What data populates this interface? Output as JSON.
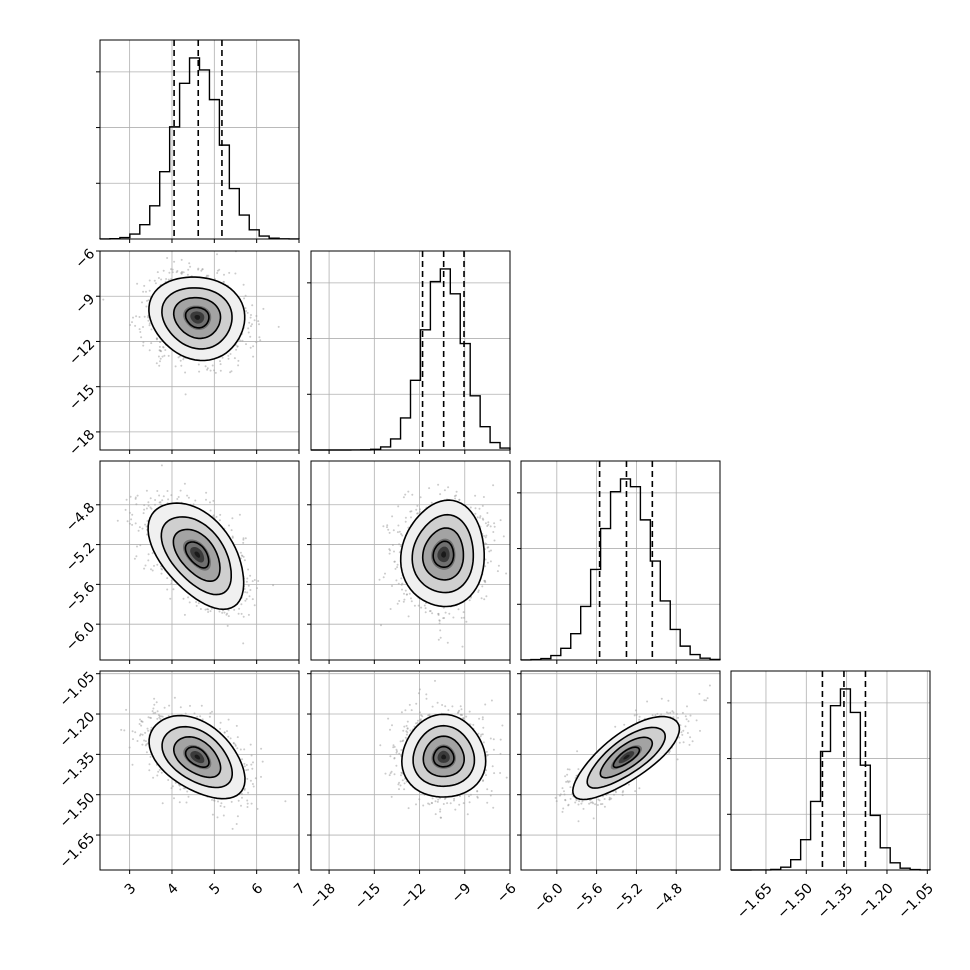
{
  "chart_data": {
    "type": "corner",
    "title": "",
    "parameters": [
      {
        "range": [
          2.3,
          7.0
        ],
        "ticks": [
          "3",
          "4",
          "5",
          "6",
          "7"
        ],
        "tick_values": [
          3,
          4,
          5,
          6,
          7
        ],
        "mean": 4.6,
        "sd": 0.55,
        "quantiles": [
          4.05,
          4.62,
          5.18
        ]
      },
      {
        "range": [
          -19.2,
          -6.0
        ],
        "ticks": [
          "−18",
          "−15",
          "−12",
          "−9",
          "−6"
        ],
        "tick_values": [
          -18,
          -15,
          -12,
          -9,
          -6
        ],
        "mean": -10.4,
        "sd": 1.35,
        "quantiles": [
          -11.8,
          -10.4,
          -9.05
        ]
      },
      {
        "range": [
          -6.36,
          -4.36
        ],
        "ticks": [
          "−6.0",
          "−5.6",
          "−5.2",
          "−4.8"
        ],
        "tick_values": [
          -6.0,
          -5.6,
          -5.2,
          -4.8
        ],
        "mean": -5.3,
        "sd": 0.26,
        "quantiles": [
          -5.57,
          -5.3,
          -5.04
        ]
      },
      {
        "range": [
          -1.78,
          -1.04
        ],
        "ticks": [
          "−1.65",
          "−1.50",
          "−1.35",
          "−1.20",
          "−1.05"
        ],
        "tick_values": [
          -1.65,
          -1.5,
          -1.35,
          -1.2,
          -1.05
        ],
        "mean": -1.36,
        "sd": 0.075,
        "quantiles": [
          -1.44,
          -1.36,
          -1.28
        ]
      }
    ],
    "y_axis_ticks": [
      null,
      {
        "ticks": [
          "−6",
          "−9",
          "−12",
          "−15",
          "−18"
        ],
        "tick_values": [
          -6,
          -9,
          -12,
          -15,
          -18
        ]
      },
      {
        "ticks": [
          "−4.8",
          "−5.2",
          "−5.6",
          "−6.0"
        ],
        "tick_values": [
          -4.8,
          -5.2,
          -5.6,
          -6.0
        ]
      },
      {
        "ticks": [
          "−1.05",
          "−1.20",
          "−1.35",
          "−1.50",
          "−1.65"
        ],
        "tick_values": [
          -1.05,
          -1.2,
          -1.35,
          -1.5,
          -1.65
        ]
      }
    ],
    "correlations": [
      {
        "pair": [
          0,
          1
        ],
        "rho": -0.1
      },
      {
        "pair": [
          0,
          2
        ],
        "rho": -0.5
      },
      {
        "pair": [
          0,
          3
        ],
        "rho": -0.45
      },
      {
        "pair": [
          1,
          2
        ],
        "rho": 0.05
      },
      {
        "pair": [
          1,
          3
        ],
        "rho": 0.0
      },
      {
        "pair": [
          2,
          3
        ],
        "rho": 0.75
      }
    ],
    "quantile_lines": "dashed",
    "grid": true,
    "colors": {
      "hist": "#000000",
      "points": "#a0a0a0",
      "grid": "#b0b0b0",
      "density_dark": "#1a1a1a"
    }
  }
}
